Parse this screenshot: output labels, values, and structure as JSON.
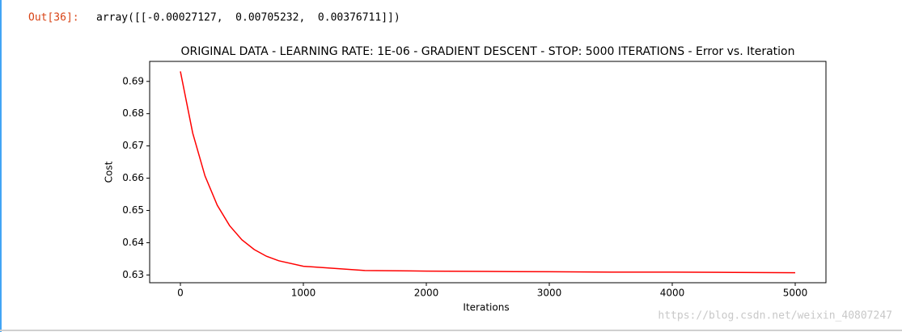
{
  "prompt": "Out[36]:",
  "output_text": "array([[-0.00027127,  0.00705232,  0.00376711]])",
  "watermark": "https://blog.csdn.net/weixin_40807247",
  "chart_data": {
    "type": "line",
    "title": "ORIGINAL DATA - LEARNING RATE: 1E-06 - GRADIENT DESCENT - STOP: 5000 ITERATIONS - Error vs. Iteration",
    "x_label": "Iterations",
    "y_label": "Cost",
    "x": [
      0,
      100,
      200,
      300,
      400,
      500,
      600,
      700,
      800,
      1000,
      1500,
      2000,
      2500,
      3000,
      3500,
      4000,
      4500,
      5000
    ],
    "series": [
      {
        "name": "Cost",
        "color": "#ff0000",
        "values": [
          0.6931,
          0.674,
          0.6607,
          0.6516,
          0.6453,
          0.6409,
          0.6379,
          0.6358,
          0.6344,
          0.6327,
          0.6314,
          0.6312,
          0.6311,
          0.631,
          0.6309,
          0.6309,
          0.6308,
          0.6307
        ]
      }
    ],
    "xlim": [
      -250,
      5250
    ],
    "ylim": [
      0.6276,
      0.6962
    ],
    "xticks": [
      0,
      1000,
      2000,
      3000,
      4000,
      5000
    ],
    "yticks": [
      0.63,
      0.64,
      0.65,
      0.66,
      0.67,
      0.68,
      0.69
    ]
  }
}
